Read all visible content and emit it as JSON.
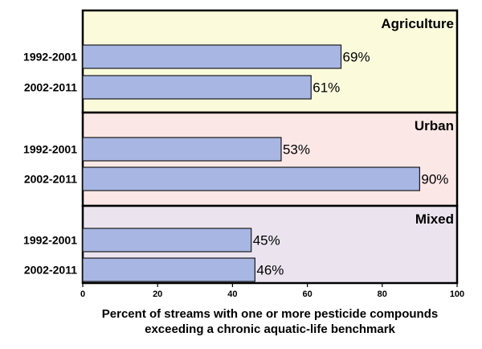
{
  "chart_data": {
    "type": "bar",
    "orientation": "horizontal",
    "xlim": [
      0,
      100
    ],
    "xticks": [
      0,
      20,
      40,
      60,
      80,
      100
    ],
    "xlabel_line1": "Percent of streams with one or more pesticide compounds",
    "xlabel_line2": "exceeding a chronic aquatic-life benchmark",
    "bar_color": "#a8b6e3",
    "panels": [
      {
        "name": "Agriculture",
        "background": "#fbfbdc",
        "categories": [
          "1992-2001",
          "2002-2011"
        ],
        "values": [
          69,
          61
        ],
        "labels": [
          "69%",
          "61%"
        ]
      },
      {
        "name": "Urban",
        "background": "#fbe8e6",
        "categories": [
          "1992-2001",
          "2002-2011"
        ],
        "values": [
          53,
          90
        ],
        "labels": [
          "53%",
          "90%"
        ]
      },
      {
        "name": "Mixed",
        "background": "#ebe4ef",
        "categories": [
          "1992-2001",
          "2002-2011"
        ],
        "values": [
          45,
          46
        ],
        "labels": [
          "45%",
          "46%"
        ]
      }
    ]
  }
}
